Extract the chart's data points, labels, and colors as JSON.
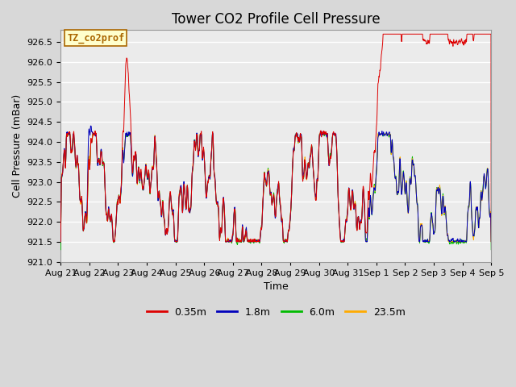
{
  "title": "Tower CO2 Profile Cell Pressure",
  "xlabel": "Time",
  "ylabel": "Cell Pressure (mBar)",
  "ylim": [
    921.0,
    926.8
  ],
  "xlim_days": [
    0.0,
    15.0
  ],
  "series_labels": [
    "0.35m",
    "1.8m",
    "6.0m",
    "23.5m"
  ],
  "series_colors": [
    "#dd0000",
    "#0000bb",
    "#00bb00",
    "#ffaa00"
  ],
  "series_lw": [
    0.7,
    0.7,
    0.7,
    0.7
  ],
  "annotation_text": "TZ_co2prof",
  "annotation_color": "#aa6600",
  "annotation_bg": "#ffffcc",
  "annotation_border": "#aa6600",
  "tick_labels": [
    "Aug 21",
    "Aug 22",
    "Aug 23",
    "Aug 24",
    "Aug 25",
    "Aug 26",
    "Aug 27",
    "Aug 28",
    "Aug 29",
    "Aug 30",
    "Aug 31",
    "Sep 1",
    "Sep 2",
    "Sep 3",
    "Sep 4",
    "Sep 5"
  ],
  "yticks": [
    921.0,
    921.5,
    922.0,
    922.5,
    923.0,
    923.5,
    924.0,
    924.5,
    925.0,
    925.5,
    926.0,
    926.5
  ],
  "bg_color": "#d8d8d8",
  "plot_bg_color": "#ebebeb",
  "grid_color": "#ffffff",
  "legend_lw": 2.0,
  "title_fontsize": 12,
  "axis_fontsize": 9,
  "tick_fontsize": 8,
  "n_points": 2000
}
